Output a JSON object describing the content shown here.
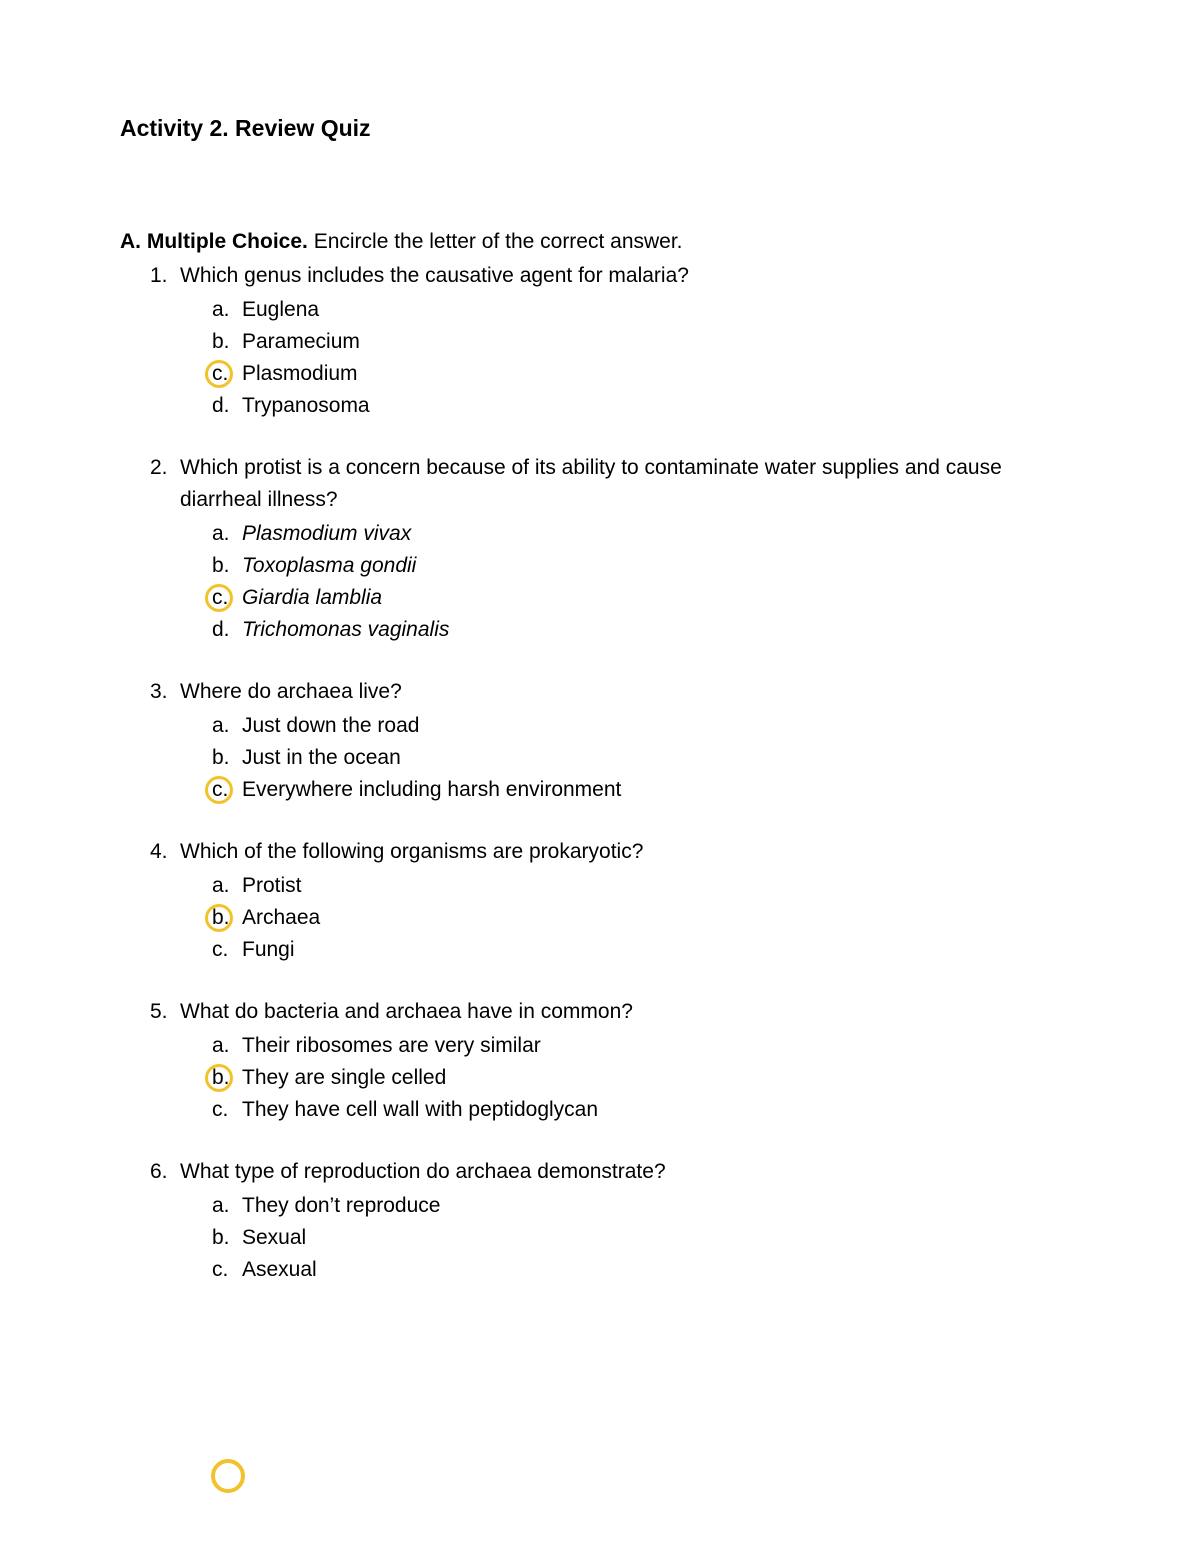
{
  "title": "Activity 2. Review Quiz",
  "section": {
    "label": "A. Multiple Choice.",
    "instruction": "Encircle the letter of the correct answer."
  },
  "circle_color": "#f3c22b",
  "text_color": "#000000",
  "background_color": "#ffffff",
  "font_size_body": 21,
  "font_size_title": 23,
  "questions": [
    {
      "num": "1.",
      "text": "Which genus includes the causative agent for malaria?",
      "options": [
        {
          "letter": "a.",
          "text": "Euglena",
          "italic": false,
          "circled": false
        },
        {
          "letter": "b.",
          "text": "Paramecium",
          "italic": false,
          "circled": false
        },
        {
          "letter": "c.",
          "text": "Plasmodium",
          "italic": false,
          "circled": true
        },
        {
          "letter": "d.",
          "text": "Trypanosoma",
          "italic": false,
          "circled": false
        }
      ]
    },
    {
      "num": "2.",
      "text": "Which protist is a concern because of its ability to contaminate water supplies and cause diarrheal illness?",
      "options": [
        {
          "letter": "a.",
          "text": "Plasmodium vivax",
          "italic": true,
          "circled": false
        },
        {
          "letter": "b.",
          "text": "Toxoplasma gondii",
          "italic": true,
          "circled": false
        },
        {
          "letter": "c.",
          "text": "Giardia lamblia",
          "italic": true,
          "circled": true
        },
        {
          "letter": "d.",
          "text": "Trichomonas vaginalis",
          "italic": true,
          "circled": false
        }
      ]
    },
    {
      "num": "3.",
      "text": "Where do archaea live?",
      "options": [
        {
          "letter": "a.",
          "text": "Just down the road",
          "italic": false,
          "circled": false
        },
        {
          "letter": "b.",
          "text": "Just in the ocean",
          "italic": false,
          "circled": false
        },
        {
          "letter": "c.",
          "text": "Everywhere including harsh environment",
          "italic": false,
          "circled": true
        }
      ]
    },
    {
      "num": "4.",
      "text": "Which of the following organisms are prokaryotic?",
      "options": [
        {
          "letter": "a.",
          "text": "Protist",
          "italic": false,
          "circled": false
        },
        {
          "letter": "b.",
          "text": "Archaea",
          "italic": false,
          "circled": true
        },
        {
          "letter": "c.",
          "text": "Fungi",
          "italic": false,
          "circled": false
        }
      ]
    },
    {
      "num": "5.",
      "text": "What do bacteria and archaea have in common?",
      "options": [
        {
          "letter": "a.",
          "text": "Their ribosomes are very similar",
          "italic": false,
          "circled": false
        },
        {
          "letter": "b.",
          "text": "They are single celled",
          "italic": false,
          "circled": true
        },
        {
          "letter": "c.",
          "text": "They have cell wall with peptidoglycan",
          "italic": false,
          "circled": false
        }
      ]
    },
    {
      "num": "6.",
      "text": "What type of reproduction do archaea demonstrate?",
      "options": [
        {
          "letter": "a.",
          "text": "They don’t reproduce",
          "italic": false,
          "circled": false
        },
        {
          "letter": "b.",
          "text": "Sexual",
          "italic": false,
          "circled": false
        },
        {
          "letter": "c.",
          "text": "Asexual",
          "italic": false,
          "circled": false
        }
      ]
    }
  ]
}
